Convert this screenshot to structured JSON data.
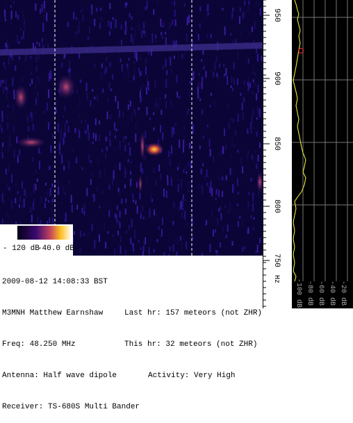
{
  "spectrogram": {
    "freq_labels": [
      "950",
      "900",
      "850",
      "800",
      "750"
    ],
    "unit": "Hz"
  },
  "colorbar": {
    "min_label": "- 120 dB",
    "max_label": "-40.0 dB"
  },
  "spectrum_panel": {
    "level_labels": [
      "-100 dB",
      "-80 dB",
      "-60 dB",
      "-40 dB",
      "-20 dB"
    ]
  },
  "info": {
    "timestamp": "2009-08-12 14:08:33 BST",
    "station": "M3MNH Matthew Earnshaw",
    "last_hr": "Last hr: 157 meteors (not ZHR)",
    "freq": "Freq: 48.250 MHz",
    "this_hr": "This hr: 32 meteors (not ZHR)",
    "antenna": "Antenna: Half wave dipole",
    "activity": "Activity: Very High",
    "receiver": "Receiver: TS-680S Multi Bander"
  }
}
